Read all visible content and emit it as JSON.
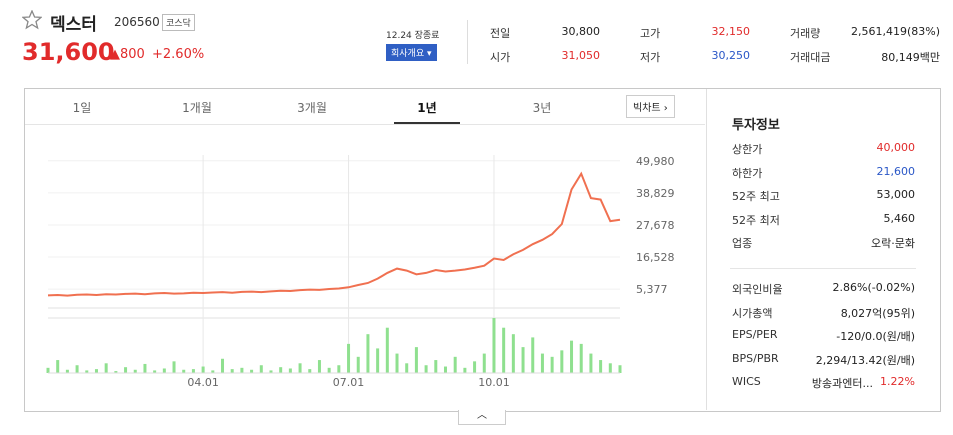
{
  "header": {
    "name": "덱스터",
    "code": "206560",
    "market": "코스닥",
    "price": "31,600",
    "change": "800",
    "rate": "+2.60%"
  },
  "status": {
    "date": "12.24 장종료",
    "button": "회사개요"
  },
  "quote": [
    [
      {
        "label": "전일",
        "value": "30,800",
        "color": "#222"
      },
      {
        "label": "고가",
        "value": "32,150",
        "color": "#e12b2b"
      },
      {
        "label": "거래량",
        "value": "2,561,419(83%)",
        "color": "#222"
      }
    ],
    [
      {
        "label": "시가",
        "value": "31,050",
        "color": "#e12b2b"
      },
      {
        "label": "저가",
        "value": "30,250",
        "color": "#2a57c7"
      },
      {
        "label": "거래대금",
        "value": "80,149백만",
        "color": "#222"
      }
    ]
  ],
  "tabs": {
    "items": [
      "1일",
      "1개월",
      "3개월",
      "1년",
      "3년"
    ],
    "active": 3,
    "big_chart": "빅차트"
  },
  "info": {
    "title": "투자정보",
    "group1": [
      {
        "label": "상한가",
        "value": "40,000",
        "color": "#e12b2b"
      },
      {
        "label": "하한가",
        "value": "21,600",
        "color": "#2a57c7"
      },
      {
        "label": "52주 최고",
        "value": "53,000",
        "color": "#222"
      },
      {
        "label": "52주 최저",
        "value": "5,460",
        "color": "#222"
      },
      {
        "label": "업종",
        "value": "오락·문화",
        "color": "#222"
      }
    ],
    "group2": [
      {
        "label": "외국인비율",
        "value": "2.86%(-0.02%)",
        "color": "#222"
      },
      {
        "label": "시가총액",
        "value": "8,027억(95위)",
        "color": "#222"
      },
      {
        "label": "EPS/PER",
        "value": "-120/0.0(원/배)",
        "color": "#222"
      },
      {
        "label": "BPS/PBR",
        "value": "2,294/13.42(원/배)",
        "color": "#222"
      },
      {
        "label": "WICS",
        "value": "방송과엔터...",
        "extra": "1.22%",
        "color": "#222"
      }
    ]
  },
  "chart_data": [
    {
      "type": "line",
      "color": "#f07050",
      "categories": [
        null,
        null,
        null,
        null,
        null,
        null,
        null,
        null,
        null,
        null,
        null,
        null,
        null,
        null,
        null,
        null,
        "04.01",
        null,
        null,
        null,
        null,
        null,
        null,
        null,
        null,
        null,
        null,
        null,
        null,
        null,
        null,
        "07.01",
        null,
        null,
        null,
        null,
        null,
        null,
        null,
        null,
        null,
        null,
        null,
        null,
        null,
        null,
        "10.01",
        null,
        null,
        null,
        null,
        null,
        null,
        null,
        null,
        null,
        null,
        null,
        null,
        null
      ],
      "values": [
        3200,
        3300,
        3100,
        3400,
        3500,
        3300,
        3600,
        3500,
        3700,
        3800,
        3600,
        3900,
        4000,
        3800,
        3900,
        4100,
        4000,
        4200,
        4300,
        4100,
        4400,
        4500,
        4300,
        4600,
        4800,
        4700,
        5000,
        5200,
        5100,
        5400,
        5600,
        6000,
        6800,
        7500,
        9000,
        11000,
        12500,
        11800,
        10500,
        11000,
        12000,
        11500,
        11800,
        12200,
        12800,
        13500,
        16000,
        15500,
        17500,
        19000,
        21000,
        22500,
        24500,
        28000,
        40000,
        45500,
        37000,
        36500,
        29000,
        29500
      ],
      "ylim": [
        -1200,
        52000
      ],
      "yticks": [
        {
          "value": 5377,
          "label": "5,377"
        },
        {
          "value": 16528,
          "label": "16,528"
        },
        {
          "value": 27678,
          "label": "27,678"
        },
        {
          "value": 38829,
          "label": "38,829"
        },
        {
          "value": 49980,
          "label": "49,980"
        }
      ]
    },
    {
      "type": "bar",
      "color": "#8fe08f",
      "values": [
        8,
        20,
        5,
        12,
        4,
        6,
        15,
        3,
        9,
        5,
        14,
        4,
        7,
        18,
        5,
        6,
        10,
        4,
        22,
        6,
        8,
        5,
        12,
        4,
        9,
        7,
        15,
        6,
        20,
        8,
        12,
        45,
        25,
        60,
        38,
        70,
        30,
        15,
        40,
        12,
        20,
        10,
        25,
        8,
        18,
        30,
        85,
        70,
        60,
        40,
        55,
        30,
        25,
        35,
        50,
        45,
        30,
        20,
        15,
        12
      ]
    }
  ]
}
